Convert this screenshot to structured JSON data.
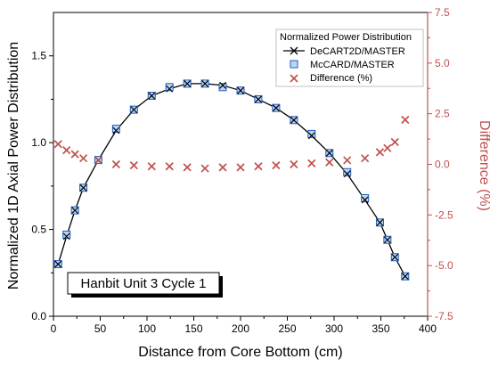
{
  "colors": {
    "line": "#000000",
    "marker_mccard": "#1f5fbf",
    "marker_mccard_fill": "#bcd4f0",
    "difference": "#c0504d",
    "right_axis": "#c0504d"
  },
  "chart_data": {
    "type": "line",
    "xlabel": "Distance from Core Bottom (cm)",
    "ylabel": "Normalized 1D Axial Power Distribution",
    "y2label": "Difference (%)",
    "xlim": [
      0,
      400
    ],
    "ylim": [
      0.0,
      1.75
    ],
    "y2lim": [
      -7.5,
      7.5
    ],
    "xticks": [
      "0",
      "50",
      "100",
      "150",
      "200",
      "250",
      "300",
      "350",
      "400"
    ],
    "yticks": [
      "0.0",
      "0.5",
      "1.0",
      "1.5"
    ],
    "y2ticks": [
      "-7.5",
      "-5.0",
      "-2.5",
      "0.0",
      "2.5",
      "5.0",
      "7.5"
    ],
    "legend_title": "Normalized Power Distribution",
    "legend_position": "top-right",
    "annotation": "Hanbit Unit 3 Cycle 1",
    "x": [
      5,
      14,
      23,
      32,
      48,
      67,
      86,
      105,
      124,
      143,
      162,
      181,
      200,
      219,
      238,
      257,
      276,
      295,
      314,
      333,
      349,
      357,
      365,
      376
    ],
    "series": [
      {
        "name": "DeCART2D/MASTER",
        "axis": "left",
        "style": "line-x",
        "values": [
          0.3,
          0.46,
          0.61,
          0.74,
          0.9,
          1.07,
          1.19,
          1.27,
          1.31,
          1.34,
          1.34,
          1.33,
          1.3,
          1.25,
          1.2,
          1.13,
          1.04,
          0.94,
          0.82,
          0.67,
          0.54,
          0.44,
          0.34,
          0.23
        ]
      },
      {
        "name": "McCARD/MASTER",
        "axis": "left",
        "style": "square",
        "values": [
          0.3,
          0.47,
          0.61,
          0.74,
          0.9,
          1.08,
          1.19,
          1.27,
          1.32,
          1.34,
          1.34,
          1.32,
          1.3,
          1.25,
          1.2,
          1.13,
          1.05,
          0.94,
          0.83,
          0.68,
          0.54,
          0.44,
          0.34,
          0.23
        ]
      },
      {
        "name": "Difference (%)",
        "axis": "right",
        "style": "x",
        "values": [
          1.0,
          0.7,
          0.5,
          0.3,
          0.2,
          0.0,
          -0.05,
          -0.1,
          -0.1,
          -0.15,
          -0.2,
          -0.15,
          -0.15,
          -0.1,
          -0.05,
          0.0,
          0.05,
          0.1,
          0.2,
          0.3,
          0.6,
          0.8,
          1.1,
          2.2
        ]
      }
    ]
  }
}
